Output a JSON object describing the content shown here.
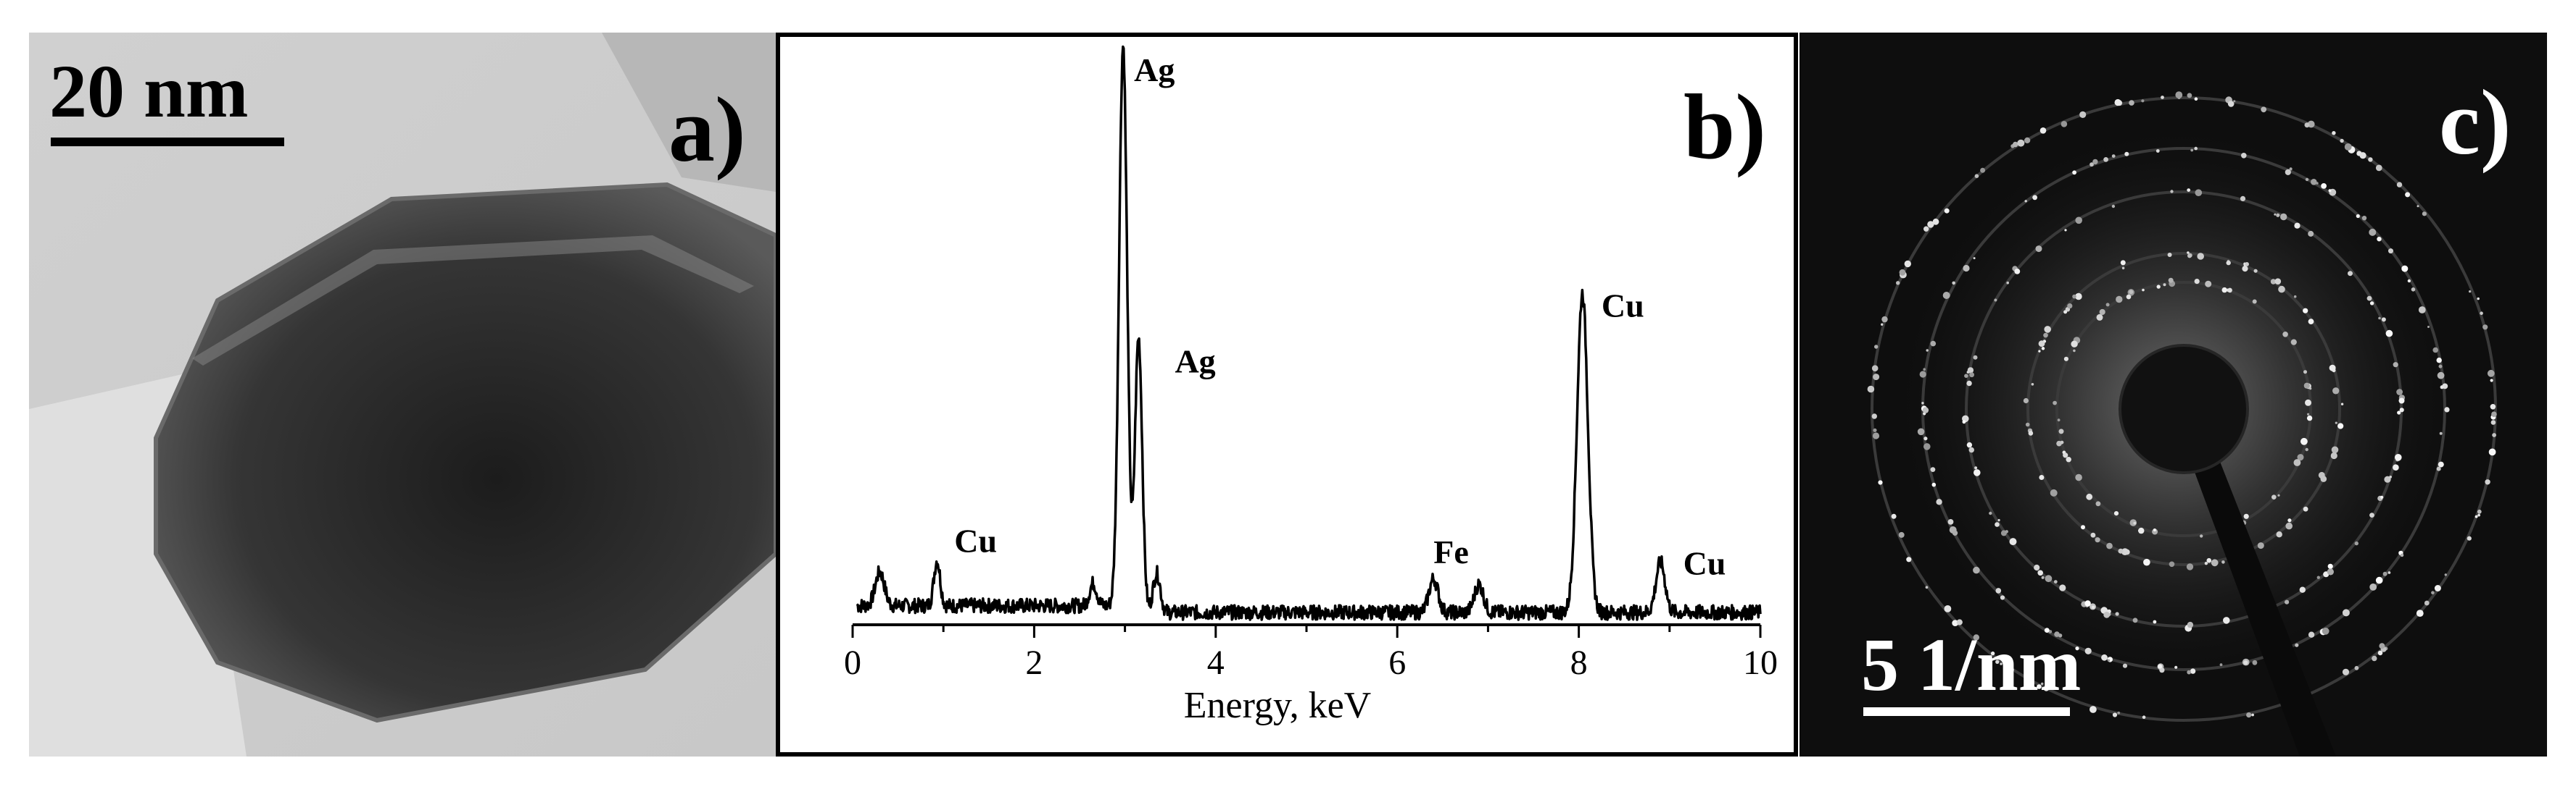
{
  "panel_a": {
    "letter": "a)",
    "scale_bar_label": "20 nm"
  },
  "panel_b": {
    "letter": "b)"
  },
  "panel_c": {
    "letter": "c)",
    "scale_bar_label": "5 1/nm"
  },
  "chart_data": {
    "type": "line",
    "xlabel": "Energy, keV",
    "ylabel": "",
    "xlim": [
      0,
      10
    ],
    "ylim": [
      0,
      100
    ],
    "x_ticks": [
      0,
      2,
      4,
      6,
      8,
      10
    ],
    "grid": false,
    "peaks": [
      {
        "element": "Cu",
        "energy": 0.93,
        "height": 8,
        "label_at": [
          1.12,
          13
        ]
      },
      {
        "element": "Ag",
        "energy": 2.98,
        "height": 100,
        "label_at": [
          3.1,
          97
        ]
      },
      {
        "element": "Ag",
        "energy": 3.15,
        "height": 49,
        "label_at": [
          3.55,
          45
        ]
      },
      {
        "element": "Fe",
        "energy": 6.4,
        "height": 6,
        "label_at": [
          6.4,
          11
        ]
      },
      {
        "element": "Cu",
        "energy": 8.04,
        "height": 57,
        "label_at": [
          8.25,
          55
        ]
      },
      {
        "element": "Cu",
        "energy": 8.9,
        "height": 9,
        "label_at": [
          9.15,
          9
        ]
      }
    ]
  }
}
